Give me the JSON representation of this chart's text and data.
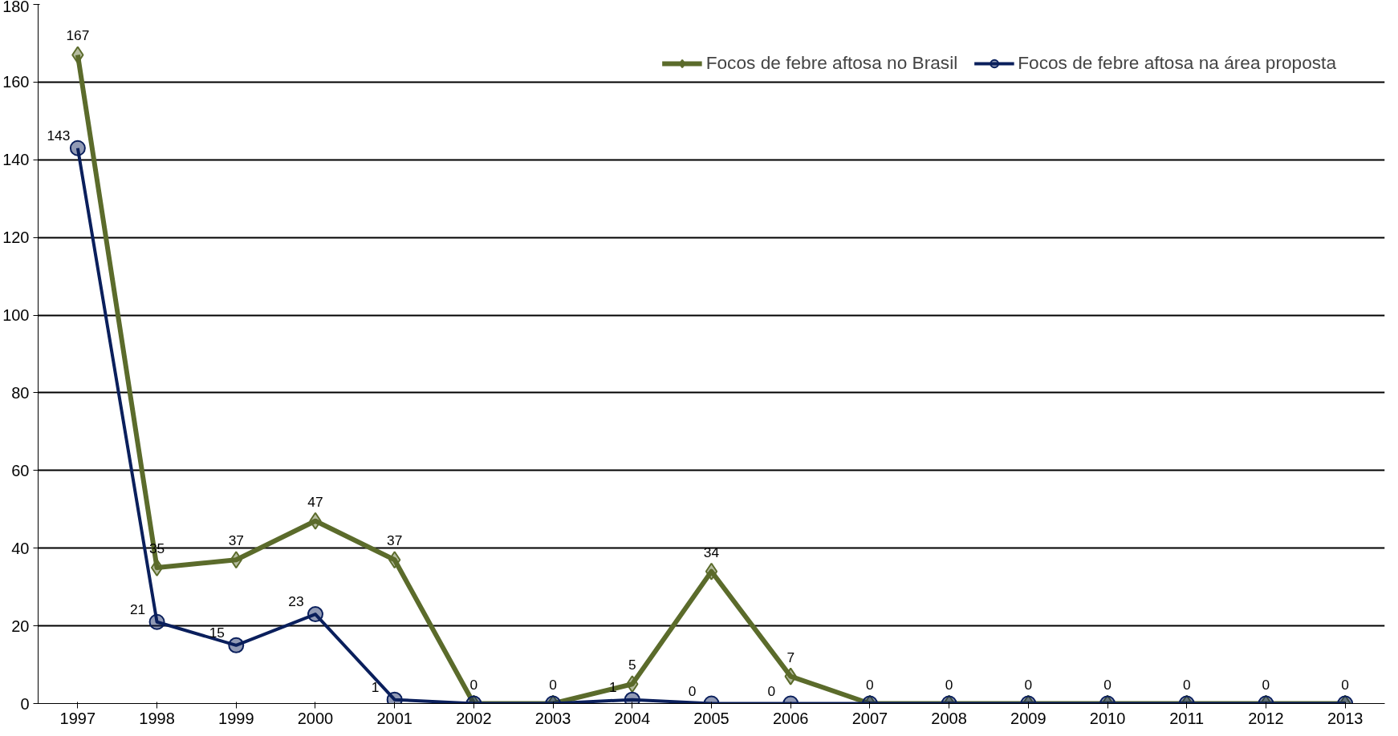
{
  "chart_data": {
    "type": "line",
    "categories": [
      "1997",
      "1998",
      "1999",
      "2000",
      "2001",
      "2002",
      "2003",
      "2004",
      "2005",
      "2006",
      "2007",
      "2008",
      "2009",
      "2010",
      "2011",
      "2012",
      "2013"
    ],
    "ylim": [
      0,
      180
    ],
    "yticks": [
      0,
      20,
      40,
      60,
      80,
      100,
      120,
      140,
      160,
      180
    ],
    "grid": "y",
    "legend": "top right",
    "series": [
      {
        "name": "Focos de febre aftosa no Brasil",
        "color": "#5b6b2b",
        "marker": "diamond",
        "values": [
          167,
          35,
          37,
          47,
          37,
          0,
          0,
          5,
          34,
          7,
          0,
          0,
          0,
          0,
          0,
          0,
          0
        ],
        "value_labels": [
          "167",
          "35",
          "37",
          "47",
          "37",
          "0",
          "0",
          "5",
          "34",
          "7",
          "0",
          "0",
          "0",
          "0",
          "0",
          "0",
          "0"
        ]
      },
      {
        "name": "Focos de febre aftosa na área proposta",
        "color": "#0a1f5c",
        "marker": "circle",
        "values": [
          143,
          21,
          15,
          23,
          1,
          0,
          0,
          1,
          0,
          0,
          0,
          0,
          0,
          0,
          0,
          0,
          0
        ],
        "value_labels": [
          "143",
          "21",
          "15",
          "23",
          "1",
          null,
          null,
          "1",
          "0",
          "0",
          null,
          null,
          null,
          null,
          null,
          null,
          null
        ]
      }
    ]
  }
}
